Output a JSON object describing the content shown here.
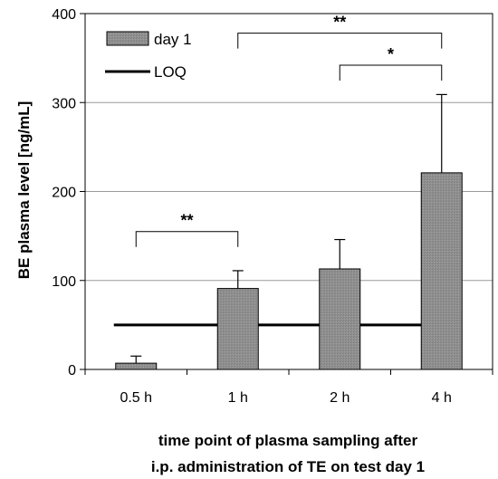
{
  "chart_data": {
    "type": "bar",
    "categories": [
      "0.5 h",
      "1 h",
      "2 h",
      "4 h"
    ],
    "series": [
      {
        "name": "day 1",
        "values": [
          7,
          91,
          113,
          221
        ],
        "error_upper": [
          15,
          111,
          146,
          309
        ],
        "color": "#8f8f8f"
      }
    ],
    "reference_lines": [
      {
        "name": "LOQ",
        "value": 50,
        "x_from": "0.5 h",
        "x_to": "4 h",
        "color": "#000000"
      }
    ],
    "significance": [
      {
        "from": "0.5 h",
        "to": "1 h",
        "label": "**",
        "y": 155
      },
      {
        "from": "1 h",
        "to": "4 h",
        "label": "**",
        "y": 378
      },
      {
        "from": "2 h",
        "to": "4 h",
        "label": "*",
        "y": 342
      }
    ],
    "ylabel": "BE plasma level [ng/mL]",
    "xlabel_lines": [
      "time point of plasma sampling after",
      "i.p. administration of TE on test day 1"
    ],
    "ylim": [
      0,
      400
    ],
    "yticks": [
      0,
      100,
      200,
      300,
      400
    ],
    "grid": true,
    "legend_position": "top-left"
  }
}
